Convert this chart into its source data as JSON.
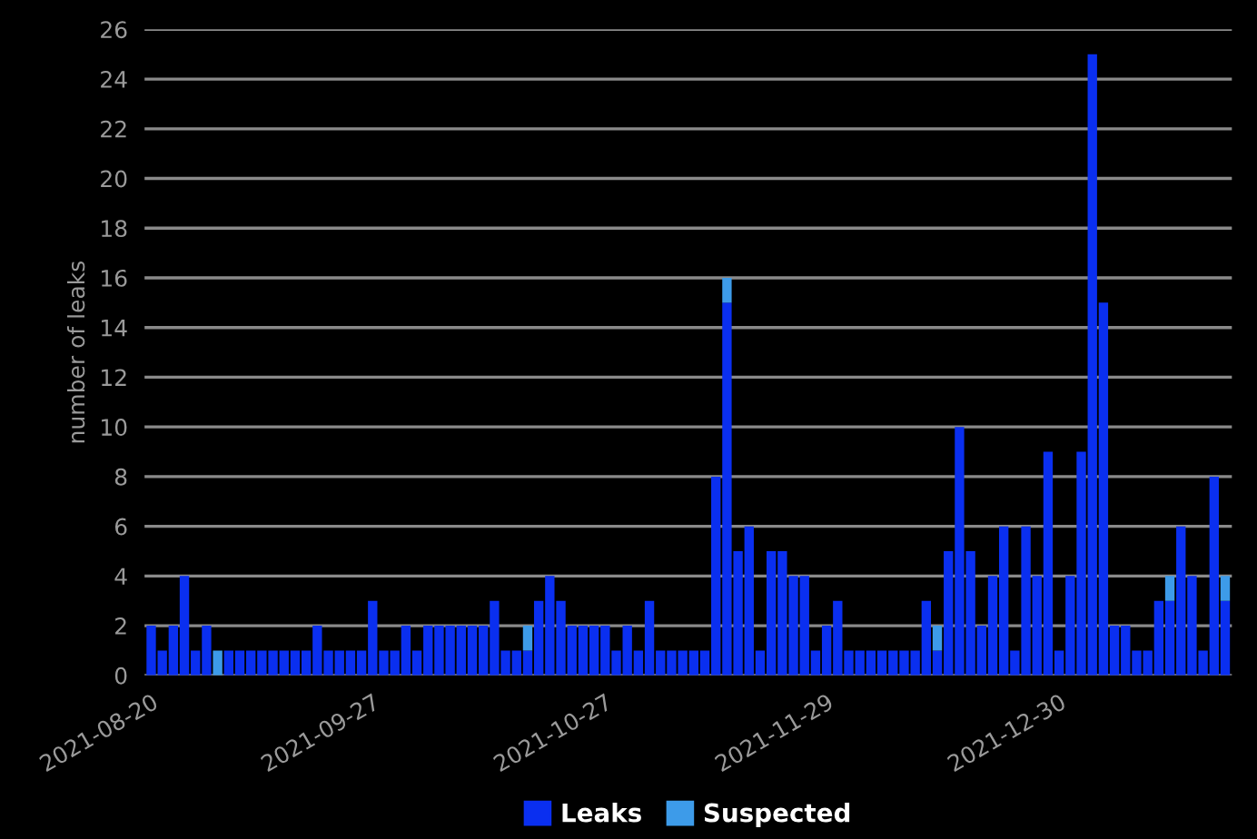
{
  "chart_data": {
    "type": "bar",
    "stacked": true,
    "ylabel": "number of leaks",
    "categories": [
      "2021-08-20",
      null,
      null,
      null,
      null,
      null,
      null,
      null,
      null,
      null,
      null,
      null,
      null,
      null,
      null,
      null,
      null,
      null,
      null,
      null,
      "2021-09-27",
      null,
      null,
      null,
      null,
      null,
      null,
      null,
      null,
      null,
      null,
      null,
      null,
      null,
      null,
      null,
      null,
      null,
      null,
      null,
      null,
      "2021-10-27",
      null,
      null,
      null,
      null,
      null,
      null,
      null,
      null,
      null,
      null,
      null,
      null,
      null,
      null,
      null,
      null,
      null,
      null,
      null,
      "2021-11-29",
      null,
      null,
      null,
      null,
      null,
      null,
      null,
      null,
      null,
      null,
      null,
      null,
      null,
      null,
      null,
      null,
      null,
      null,
      null,
      null,
      "2021-12-30",
      null,
      null,
      null,
      null,
      null,
      null,
      null,
      null,
      null,
      null,
      null,
      null,
      null,
      null,
      null
    ],
    "series": [
      {
        "name": "Leaks",
        "color": "#0a2ff0",
        "values": [
          2,
          1,
          2,
          4,
          1,
          2,
          0,
          1,
          1,
          1,
          1,
          1,
          1,
          1,
          1,
          2,
          1,
          1,
          1,
          1,
          3,
          1,
          1,
          2,
          1,
          2,
          2,
          2,
          2,
          2,
          2,
          3,
          1,
          1,
          1,
          3,
          4,
          3,
          2,
          2,
          2,
          2,
          1,
          2,
          1,
          3,
          1,
          1,
          1,
          1,
          1,
          8,
          15,
          5,
          6,
          1,
          5,
          5,
          4,
          4,
          1,
          2,
          3,
          1,
          1,
          1,
          1,
          1,
          1,
          1,
          3,
          1,
          5,
          10,
          5,
          2,
          4,
          6,
          1,
          6,
          4,
          9,
          1,
          4,
          9,
          25,
          15,
          2,
          2,
          1,
          1,
          3,
          3,
          6,
          4,
          1,
          8,
          3
        ]
      },
      {
        "name": "Suspected",
        "color": "#3d9be9",
        "values": [
          0,
          0,
          0,
          0,
          0,
          0,
          1,
          0,
          0,
          0,
          0,
          0,
          0,
          0,
          0,
          0,
          0,
          0,
          0,
          0,
          0,
          0,
          0,
          0,
          0,
          0,
          0,
          0,
          0,
          0,
          0,
          0,
          0,
          0,
          1,
          0,
          0,
          0,
          0,
          0,
          0,
          0,
          0,
          0,
          0,
          0,
          0,
          0,
          0,
          0,
          0,
          0,
          1,
          0,
          0,
          0,
          0,
          0,
          0,
          0,
          0,
          0,
          0,
          0,
          0,
          0,
          0,
          0,
          0,
          0,
          0,
          1,
          0,
          0,
          0,
          0,
          0,
          0,
          0,
          0,
          0,
          0,
          0,
          0,
          0,
          0,
          0,
          0,
          0,
          0,
          0,
          0,
          1,
          0,
          0,
          0,
          0,
          1
        ]
      }
    ],
    "ylim": [
      0,
      26
    ],
    "yticks": [
      0,
      2,
      4,
      6,
      8,
      10,
      12,
      14,
      16,
      18,
      20,
      22,
      24,
      26
    ],
    "grid": "y",
    "legend": "bottom"
  }
}
